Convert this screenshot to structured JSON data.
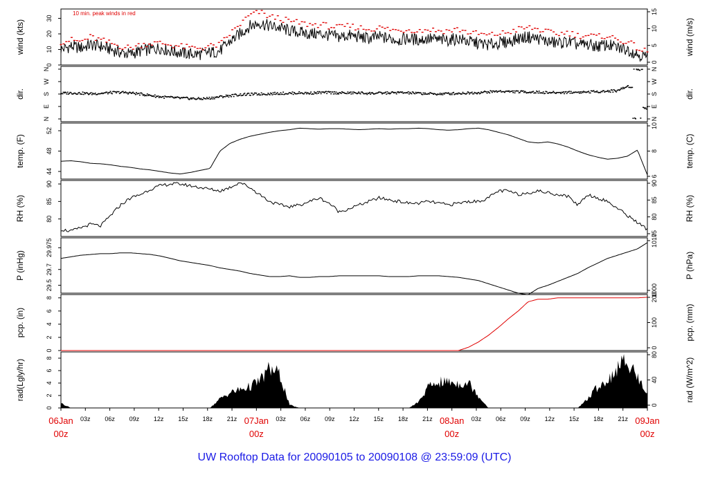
{
  "title": "UW Rooftop Data for 20090105  to  20090108 @ 23:59:09  (UTC)",
  "colors": {
    "axis": "#000000",
    "accent": "#e00000",
    "title": "#1a1ae6"
  },
  "time_axis": {
    "hour_ticks": [
      "03z",
      "06z",
      "09z",
      "12z",
      "15z",
      "18z",
      "21z",
      "03z",
      "06z",
      "09z",
      "12z",
      "15z",
      "18z",
      "21z",
      "03z",
      "06z",
      "09z",
      "12z",
      "15z",
      "18z",
      "21z"
    ],
    "day_labels": [
      {
        "date": "06Jan",
        "hour": "00z"
      },
      {
        "date": "07Jan",
        "hour": "00z"
      },
      {
        "date": "08Jan",
        "hour": "00z"
      },
      {
        "date": "09Jan",
        "hour": "00z"
      }
    ]
  },
  "chart_data": [
    {
      "type": "line",
      "ylabel": "wind (kts)",
      "ylabel_right": "wind (m/s)",
      "ylim": [
        0,
        36
      ],
      "yticks": [
        0,
        10,
        20,
        30
      ],
      "yticks_right": [
        0,
        5,
        10,
        15
      ],
      "annotation": "10 min. peak winds in red",
      "series": [
        {
          "values": [
            10,
            12,
            11,
            13,
            12,
            10,
            8,
            7,
            9,
            10,
            11,
            9,
            8,
            7,
            7,
            8,
            9,
            15,
            20,
            25,
            27,
            25,
            24,
            22,
            21,
            20,
            20,
            19,
            18,
            19,
            18,
            17,
            18,
            17,
            16,
            17,
            16,
            17,
            16,
            16,
            17,
            15,
            14,
            13,
            14,
            15,
            17,
            18,
            17,
            15,
            14,
            15,
            13,
            13,
            12,
            13,
            11,
            10,
            7,
            5
          ]
        },
        {
          "name": "peak",
          "values": [
            15,
            16,
            15,
            18,
            16,
            14,
            12,
            11,
            13,
            14,
            14,
            13,
            12,
            11,
            11,
            12,
            13,
            20,
            26,
            32,
            34,
            31,
            30,
            28,
            27,
            26,
            26,
            25,
            24,
            25,
            24,
            23,
            24,
            23,
            22,
            23,
            22,
            23,
            22,
            22,
            23,
            21,
            20,
            19,
            20,
            21,
            23,
            24,
            23,
            21,
            20,
            21,
            19,
            19,
            18,
            19,
            16,
            15,
            11,
            8
          ]
        }
      ]
    },
    {
      "type": "scatter",
      "ylabel": "dir.",
      "ylabel_right": "dir.",
      "yticks": [
        "N",
        "E",
        "S",
        "W",
        "N"
      ],
      "series": [
        {
          "values": [
            185,
            188,
            186,
            182,
            185,
            190,
            192,
            188,
            180,
            170,
            160,
            155,
            150,
            148,
            145,
            150,
            160,
            168,
            175,
            178,
            180,
            182,
            185,
            185,
            188,
            186,
            190,
            190,
            188,
            187,
            188,
            185,
            186,
            188,
            190,
            188,
            185,
            182,
            180,
            183,
            185,
            188,
            190,
            195,
            200,
            198,
            196,
            195,
            193,
            190,
            190,
            192,
            193,
            195,
            198,
            200,
            205,
            235,
            360,
            80
          ]
        }
      ]
    },
    {
      "type": "line",
      "ylabel": "temp. (F)",
      "ylabel_right": "temp. (C)",
      "ylim": [
        42.5,
        53.5
      ],
      "yticks": [
        44,
        48,
        52
      ],
      "yticks_right": [
        6,
        8,
        10
      ],
      "series": [
        {
          "values": [
            46.0,
            46.1,
            45.9,
            45.6,
            45.5,
            45.3,
            45.0,
            44.8,
            44.5,
            44.3,
            44.0,
            43.7,
            43.5,
            43.8,
            44.2,
            44.6,
            48.0,
            49.5,
            50.3,
            50.9,
            51.3,
            51.7,
            52.0,
            52.2,
            52.5,
            52.4,
            52.3,
            52.4,
            52.4,
            52.3,
            52.2,
            52.3,
            52.4,
            52.3,
            52.4,
            52.4,
            52.5,
            52.4,
            52.2,
            52.1,
            52.2,
            52.4,
            52.5,
            52.2,
            51.7,
            51.2,
            50.5,
            49.8,
            49.6,
            49.8,
            49.4,
            48.8,
            48.0,
            47.3,
            46.8,
            46.4,
            46.6,
            47.0,
            48.2,
            43.3
          ]
        }
      ]
    },
    {
      "type": "line",
      "ylabel": "RH (%)",
      "ylabel_right": "RH (%)",
      "ylim": [
        75,
        91
      ],
      "yticks": [
        80,
        85,
        90
      ],
      "yticks_right": [
        75,
        80,
        85,
        90
      ],
      "series": [
        {
          "values": [
            77,
            76.5,
            77.5,
            78.5,
            78,
            81,
            84,
            86,
            87,
            88.5,
            89.5,
            90,
            90,
            89.5,
            89,
            88.5,
            88,
            89,
            90.5,
            89,
            87,
            85,
            84,
            83.5,
            84,
            85,
            86,
            84.5,
            82,
            83,
            84,
            85,
            86,
            85.5,
            85,
            84.5,
            84.5,
            85,
            84.5,
            84,
            84.5,
            85,
            85,
            86,
            88,
            88,
            87,
            87.5,
            88,
            87.5,
            87,
            86.5,
            84,
            87,
            86,
            85,
            83,
            81,
            79,
            77
          ]
        }
      ]
    },
    {
      "type": "line",
      "ylabel": "P (inHg)",
      "ylabel_right": "P (hPa)",
      "ylim": [
        29.4,
        30.1
      ],
      "yticks": [
        29.5,
        29.7,
        29.975
      ],
      "yticks_right": [
        1000,
        1010
      ],
      "series": [
        {
          "values": [
            29.84,
            29.86,
            29.88,
            29.89,
            29.9,
            29.9,
            29.91,
            29.91,
            29.9,
            29.89,
            29.87,
            29.84,
            29.81,
            29.79,
            29.77,
            29.75,
            29.72,
            29.7,
            29.68,
            29.65,
            29.63,
            29.61,
            29.61,
            29.62,
            29.6,
            29.6,
            29.61,
            29.61,
            29.62,
            29.62,
            29.62,
            29.62,
            29.62,
            29.61,
            29.61,
            29.61,
            29.62,
            29.62,
            29.62,
            29.61,
            29.6,
            29.58,
            29.56,
            29.52,
            29.48,
            29.44,
            29.4,
            29.38,
            29.46,
            29.5,
            29.55,
            29.6,
            29.65,
            29.72,
            29.78,
            29.84,
            29.88,
            29.92,
            29.96,
            30.04
          ]
        }
      ]
    },
    {
      "type": "line",
      "ylabel": "pcp. (in)",
      "ylabel_right": "pcp. (mm)",
      "ylim": [
        0,
        8.5
      ],
      "yticks": [
        0,
        2,
        4,
        6,
        8
      ],
      "yticks_right": [
        0,
        100,
        200
      ],
      "series": [
        {
          "values": [
            0,
            0,
            0,
            0,
            0,
            0,
            0,
            0,
            0,
            0,
            0,
            0,
            0,
            0,
            0,
            0,
            0,
            0,
            0,
            0,
            0,
            0,
            0,
            0,
            0,
            0,
            0,
            0,
            0,
            0,
            0,
            0,
            0,
            0,
            0,
            0,
            0,
            0,
            0,
            0,
            0,
            0.5,
            1.3,
            2.3,
            3.5,
            4.8,
            6.0,
            7.4,
            7.8,
            7.8,
            8.0,
            8.0,
            8.0,
            8.0,
            8.0,
            8.0,
            8.0,
            8.0,
            8.0,
            8.1
          ]
        }
      ]
    },
    {
      "type": "area",
      "ylabel": "rad(Lgly/hr)",
      "ylabel_right": "rad (W/m^2)",
      "ylim": [
        0,
        9
      ],
      "yticks": [
        0,
        2,
        4,
        6,
        8
      ],
      "yticks_right": [
        0,
        40,
        80
      ],
      "series": [
        {
          "values": [
            0.8,
            0,
            0,
            0,
            0,
            0,
            0,
            0,
            0,
            0,
            0,
            0,
            0,
            0,
            0,
            0,
            1.5,
            2.5,
            3.0,
            3.5,
            4.5,
            6.5,
            5.5,
            0.5,
            0,
            0,
            0,
            0,
            0,
            0,
            0,
            0,
            0,
            0,
            0,
            0,
            1.0,
            3.5,
            4.2,
            4.3,
            4.0,
            4.2,
            2.0,
            0,
            0,
            0,
            0,
            0,
            0,
            0,
            0,
            0,
            0,
            1.5,
            3.5,
            4.5,
            6.5,
            8.0,
            5.0,
            2.5
          ]
        }
      ]
    }
  ]
}
